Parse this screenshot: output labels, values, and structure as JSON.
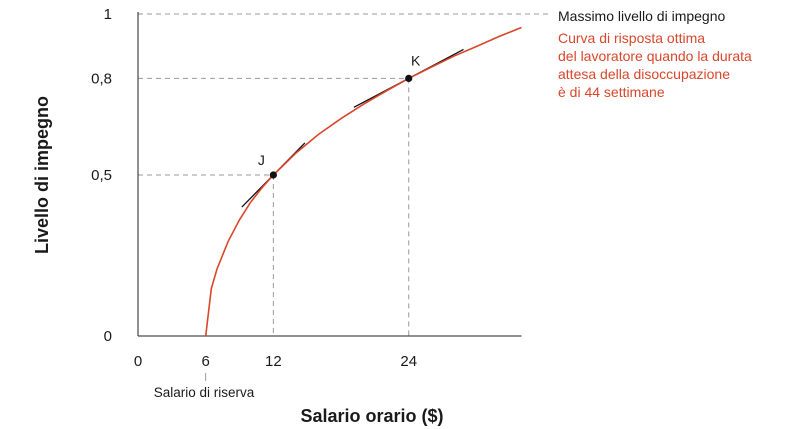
{
  "chart_data": {
    "type": "line",
    "xlabel": "Salario orario ($)",
    "ylabel": "Livello di impegno",
    "xlim": [
      0,
      34
    ],
    "ylim": [
      0,
      1
    ],
    "x_ticks": [
      {
        "value": 0,
        "label": "0"
      },
      {
        "value": 6,
        "label": "6"
      },
      {
        "value": 12,
        "label": "12"
      },
      {
        "value": 24,
        "label": "24"
      }
    ],
    "y_ticks": [
      {
        "value": 0,
        "label": "0"
      },
      {
        "value": 0.5,
        "label": "0,5"
      },
      {
        "value": 0.8,
        "label": "0,8"
      },
      {
        "value": 1,
        "label": "1"
      }
    ],
    "grid": false,
    "reservation_wage": {
      "x": 6,
      "label": "Salario di riserva"
    },
    "max_effort": {
      "y": 1,
      "label": "Massimo livello di impegno"
    },
    "series": [
      {
        "name": "Curva di risposta ottima del lavoratore quando la durata attesa della disoccupazione è di 44 settimane",
        "label_lines": [
          "Curva di risposta ottima",
          "del lavoratore quando la durata",
          "attesa della disoccupazione",
          "è di 44 settimane"
        ],
        "color": "#d9472b",
        "x": [
          6,
          6.5,
          7,
          8,
          9,
          10,
          11,
          12,
          14,
          16,
          18,
          20,
          22,
          24,
          26,
          28,
          30,
          32,
          34
        ],
        "y": [
          0,
          0.147,
          0.208,
          0.294,
          0.361,
          0.416,
          0.461,
          0.5,
          0.568,
          0.626,
          0.675,
          0.72,
          0.761,
          0.8,
          0.835,
          0.869,
          0.899,
          0.93,
          0.958
        ]
      }
    ],
    "points": [
      {
        "label": "J",
        "x": 12,
        "y": 0.5
      },
      {
        "label": "K",
        "x": 24,
        "y": 0.8
      }
    ]
  }
}
